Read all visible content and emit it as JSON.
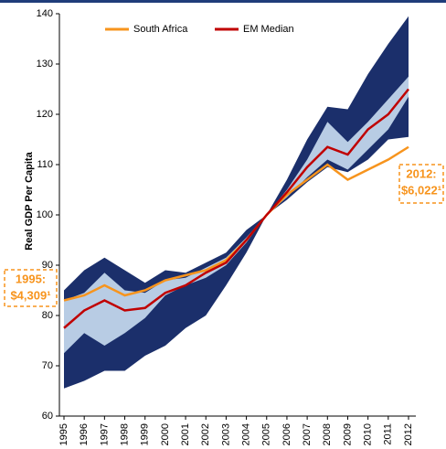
{
  "chart_data": {
    "type": "line",
    "y_label": "Real GDP Per Capita",
    "categories": [
      "1995",
      "1996",
      "1997",
      "1998",
      "1999",
      "2000",
      "2001",
      "2002",
      "2003",
      "2004",
      "2005",
      "2006",
      "2007",
      "2008",
      "2009",
      "2010",
      "2011",
      "2012"
    ],
    "series": [
      {
        "name": "South Africa",
        "color": "#f7941d",
        "values": [
          83,
          84,
          86,
          84,
          85,
          87,
          88,
          89,
          91,
          95,
          100,
          104,
          107,
          110,
          107,
          109,
          111,
          113.5
        ]
      },
      {
        "name": "EM Median",
        "color": "#c00000",
        "values": [
          77.5,
          81,
          83,
          81,
          81.5,
          84.5,
          86,
          88.5,
          90.5,
          95,
          100,
          104.5,
          109.5,
          113.5,
          112,
          117,
          120,
          125
        ]
      }
    ],
    "bands": [
      {
        "color": "#1b2f6b",
        "upper": [
          85,
          89,
          91.5,
          89,
          86.5,
          89,
          88.5,
          90.5,
          92.5,
          97,
          100,
          107,
          115,
          121.5,
          121,
          128,
          134,
          139.5
        ],
        "lower": [
          65.5,
          67,
          69,
          69,
          72,
          74,
          77.5,
          80,
          86,
          92.5,
          100,
          103,
          106.5,
          109.5,
          108.5,
          111,
          115,
          115.5
        ]
      },
      {
        "color": "#b8cce4",
        "upper": [
          83,
          84.5,
          88.5,
          85,
          84.5,
          87,
          87.5,
          89.5,
          91.5,
          95.5,
          100,
          105,
          111,
          118.5,
          114.5,
          118.5,
          123,
          127.5
        ],
        "lower": [
          72.5,
          76.5,
          74,
          76.5,
          79.5,
          84,
          86,
          87.5,
          90,
          94.5,
          100,
          103.5,
          107.5,
          111,
          109,
          113,
          117,
          123.5
        ]
      }
    ],
    "ylim": [
      60,
      140
    ],
    "yticks": [
      60,
      70,
      80,
      90,
      100,
      110,
      120,
      130,
      140
    ],
    "grid": false,
    "legend": "top",
    "annotations": [
      {
        "lines": [
          "1995:",
          "$4,309¹"
        ],
        "color": "#f7941d"
      },
      {
        "lines": [
          "2012:",
          "$6,022¹"
        ],
        "color": "#f7941d"
      }
    ]
  }
}
